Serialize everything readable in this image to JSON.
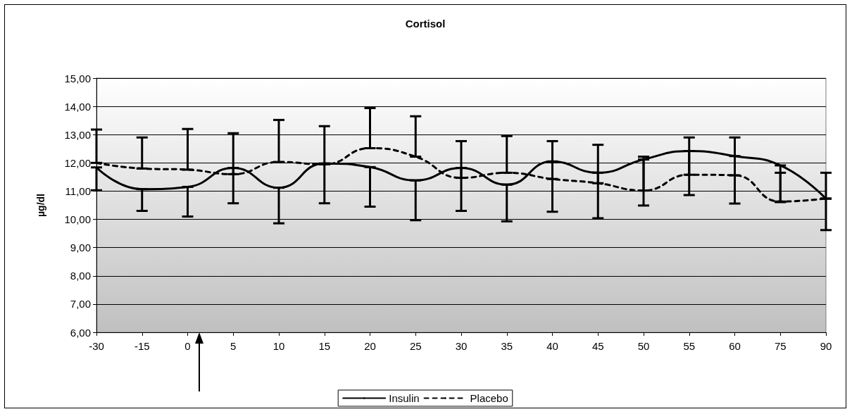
{
  "chart_data": {
    "type": "line",
    "title": "Cortisol",
    "ylabel": "µg/dl",
    "categories": [
      "-30",
      "-15",
      "0",
      "5",
      "10",
      "15",
      "20",
      "25",
      "30",
      "35",
      "40",
      "45",
      "50",
      "55",
      "60",
      "75",
      "90"
    ],
    "series": [
      {
        "name": "Insulin",
        "color": "#000000",
        "line_style": "solid",
        "values": [
          11.84,
          11.07,
          11.15,
          11.82,
          11.12,
          11.98,
          11.85,
          11.38,
          11.82,
          11.23,
          12.05,
          11.65,
          12.12,
          12.42,
          12.24,
          11.91,
          10.73
        ],
        "errors": [
          [
            11.03,
            11.84
          ],
          [
            10.3,
            11.07
          ],
          [
            10.1,
            11.15
          ],
          [
            10.57,
            11.82
          ],
          [
            9.86,
            11.12
          ],
          [
            10.57,
            11.98
          ],
          [
            10.45,
            11.85
          ],
          [
            9.97,
            11.38
          ],
          [
            10.3,
            11.82
          ],
          [
            9.93,
            11.23
          ],
          [
            10.27,
            12.05
          ],
          [
            10.04,
            11.65
          ],
          [
            10.49,
            12.12
          ],
          [
            10.86,
            12.42
          ],
          [
            10.56,
            12.24
          ],
          [
            10.61,
            11.91
          ],
          [
            9.62,
            10.73
          ]
        ]
      },
      {
        "name": "Placebo",
        "color": "#000000",
        "line_style": "dashed",
        "values": [
          12.0,
          11.8,
          11.76,
          11.6,
          12.03,
          11.95,
          12.52,
          12.22,
          11.47,
          11.65,
          11.43,
          11.28,
          11.02,
          11.58,
          11.56,
          10.63,
          10.74
        ],
        "errors": [
          [
            12.0,
            13.18
          ],
          [
            11.8,
            12.9
          ],
          [
            11.76,
            13.2
          ],
          [
            11.6,
            13.05
          ],
          [
            12.03,
            13.52
          ],
          [
            11.95,
            13.3
          ],
          [
            12.52,
            13.94
          ],
          [
            12.22,
            13.65
          ],
          [
            11.47,
            12.77
          ],
          [
            11.65,
            12.95
          ],
          [
            11.43,
            12.77
          ],
          [
            11.28,
            12.64
          ],
          [
            11.02,
            12.22
          ],
          [
            11.58,
            12.9
          ],
          [
            11.56,
            12.9
          ],
          [
            10.63,
            11.65
          ],
          [
            10.74,
            11.65
          ]
        ]
      }
    ],
    "ylim": [
      6,
      15
    ],
    "yticks": [
      {
        "value": 6,
        "label": "6,00"
      },
      {
        "value": 7,
        "label": "7,00"
      },
      {
        "value": 8,
        "label": "8,00"
      },
      {
        "value": 9,
        "label": "9,00"
      },
      {
        "value": 10,
        "label": "10,00"
      },
      {
        "value": 11,
        "label": "11,00"
      },
      {
        "value": 12,
        "label": "12,00"
      },
      {
        "value": 13,
        "label": "13,00"
      },
      {
        "value": 14,
        "label": "14,00"
      },
      {
        "value": 15,
        "label": "15,00"
      }
    ],
    "grid": "y",
    "legend": "bottom",
    "marker": "none"
  }
}
